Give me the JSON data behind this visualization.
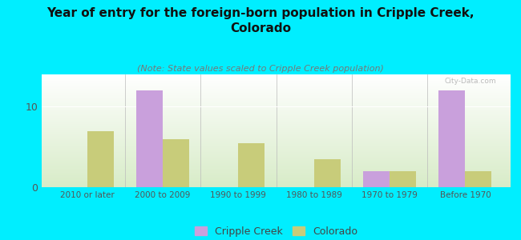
{
  "title": "Year of entry for the foreign-born population in Cripple Creek,\nColorado",
  "subtitle": "(Note: State values scaled to Cripple Creek population)",
  "categories": [
    "2010 or later",
    "2000 to 2009",
    "1990 to 1999",
    "1980 to 1989",
    "1970 to 1979",
    "Before 1970"
  ],
  "cripple_creek": [
    0,
    12,
    0,
    0,
    2,
    12
  ],
  "colorado": [
    7,
    6,
    5.5,
    3.5,
    2,
    2
  ],
  "cripple_creek_color": "#c9a0dc",
  "colorado_color": "#c8cc7a",
  "background_outer": "#00eeff",
  "background_plot_top": "#ffffff",
  "background_plot_bottom": "#d8ecc8",
  "title_fontsize": 11,
  "subtitle_fontsize": 8,
  "ylabel_ticks": [
    0,
    10
  ],
  "ylim": [
    0,
    14
  ],
  "bar_width": 0.35,
  "legend_labels": [
    "Cripple Creek",
    "Colorado"
  ]
}
